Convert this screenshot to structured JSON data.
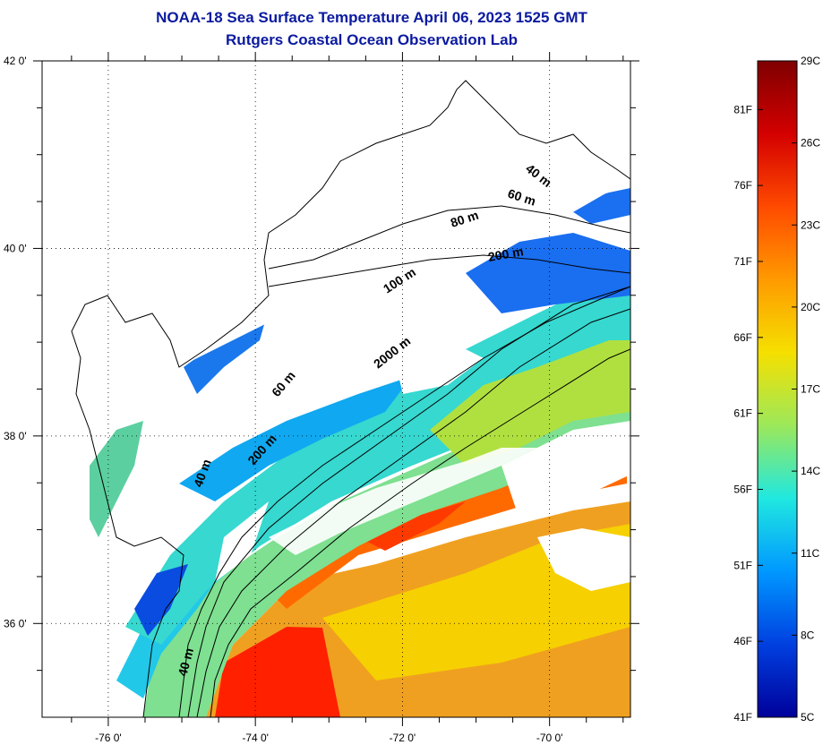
{
  "title_line1": "NOAA-18 Sea Surface Temperature April 06, 2023 1525 GMT",
  "title_line2": "Rutgers Coastal Ocean Observation Lab",
  "lon_ticks": [
    {
      "value": -76,
      "label": "-76 0'"
    },
    {
      "value": -74,
      "label": "-74 0'"
    },
    {
      "value": -72,
      "label": "-72 0'"
    },
    {
      "value": -70,
      "label": "-70 0'"
    }
  ],
  "lat_ticks": [
    {
      "value": 42,
      "label": "42 0'"
    },
    {
      "value": 40,
      "label": "40 0'"
    },
    {
      "value": 38,
      "label": "38 0'"
    },
    {
      "value": 36,
      "label": "36 0'"
    }
  ],
  "contour_labels": [
    "40 m",
    "60 m",
    "80 m",
    "200 m",
    "100 m",
    "2000 m",
    "60 m",
    "200 m",
    "40 m",
    "40 m"
  ],
  "colorbar": {
    "celsius": [
      "29C",
      "26C",
      "23C",
      "20C",
      "17C",
      "14C",
      "11C",
      "8C",
      "5C"
    ],
    "fahrenheit": [
      "81F",
      "76F",
      "71F",
      "66F",
      "61F",
      "56F",
      "51F",
      "46F",
      "41F"
    ],
    "colors": [
      "#7f0000",
      "#d40000",
      "#ff4a00",
      "#ff9a00",
      "#f5e000",
      "#9ce85a",
      "#20e8e0",
      "#0098ff",
      "#0040e0",
      "#00009a"
    ]
  }
}
